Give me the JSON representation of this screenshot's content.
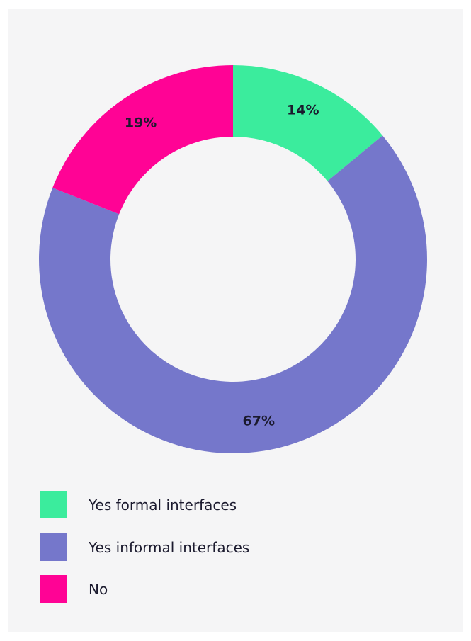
{
  "chart_data": {
    "type": "pie",
    "variant": "donut",
    "categories": [
      "Yes formal interfaces",
      "Yes informal interfaces",
      "No"
    ],
    "values": [
      14,
      67,
      19
    ],
    "data_labels": [
      "14%",
      "67%",
      "19%"
    ],
    "colors": [
      "#3bec9d",
      "#7577cb",
      "#ff0395"
    ],
    "legend_position": "bottom-left"
  },
  "legend": {
    "items": [
      {
        "label": "Yes formal interfaces",
        "color": "#3bec9d"
      },
      {
        "label": "Yes informal interfaces",
        "color": "#7577cb"
      },
      {
        "label": "No",
        "color": "#ff0395"
      }
    ]
  }
}
